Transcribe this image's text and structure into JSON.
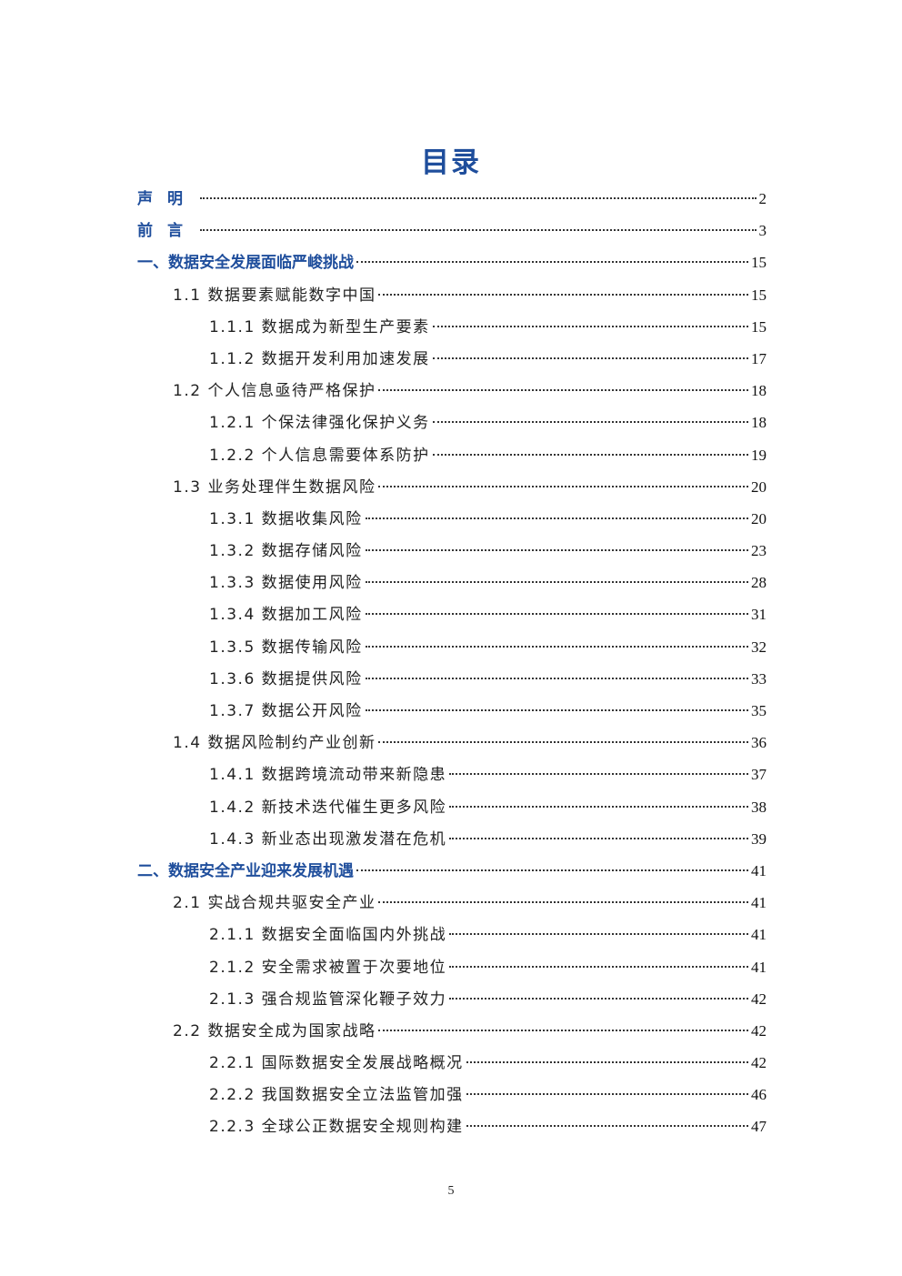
{
  "title": "目录",
  "entries": [
    {
      "level": 0,
      "label": "声明",
      "page": "2",
      "spaced": true
    },
    {
      "level": 0,
      "label": "前言",
      "page": "3",
      "spaced": true
    },
    {
      "level": 0,
      "label": "一、数据安全发展面临严峻挑战",
      "page": "15"
    },
    {
      "level": 1,
      "label": "1.1 数据要素赋能数字中国",
      "page": "15"
    },
    {
      "level": 2,
      "label": "1.1.1 数据成为新型生产要素",
      "page": "15"
    },
    {
      "level": 2,
      "label": "1.1.2 数据开发利用加速发展",
      "page": "17"
    },
    {
      "level": 1,
      "label": "1.2 个人信息亟待严格保护",
      "page": "18"
    },
    {
      "level": 2,
      "label": "1.2.1 个保法律强化保护义务",
      "page": "18"
    },
    {
      "level": 2,
      "label": "1.2.2 个人信息需要体系防护",
      "page": "19"
    },
    {
      "level": 1,
      "label": "1.3 业务处理伴生数据风险",
      "page": "20"
    },
    {
      "level": 2,
      "label": "1.3.1 数据收集风险",
      "page": "20"
    },
    {
      "level": 2,
      "label": "1.3.2 数据存储风险",
      "page": "23"
    },
    {
      "level": 2,
      "label": "1.3.3 数据使用风险",
      "page": "28"
    },
    {
      "level": 2,
      "label": "1.3.4 数据加工风险",
      "page": "31"
    },
    {
      "level": 2,
      "label": "1.3.5 数据传输风险",
      "page": "32"
    },
    {
      "level": 2,
      "label": "1.3.6 数据提供风险",
      "page": "33"
    },
    {
      "level": 2,
      "label": "1.3.7 数据公开风险",
      "page": "35"
    },
    {
      "level": 1,
      "label": "1.4 数据风险制约产业创新",
      "page": "36"
    },
    {
      "level": 2,
      "label": "1.4.1 数据跨境流动带来新隐患",
      "page": "37"
    },
    {
      "level": 2,
      "label": "1.4.2 新技术迭代催生更多风险",
      "page": "38"
    },
    {
      "level": 2,
      "label": "1.4.3 新业态出现激发潜在危机",
      "page": "39"
    },
    {
      "level": 0,
      "label": "二、数据安全产业迎来发展机遇",
      "page": "41"
    },
    {
      "level": 1,
      "label": "2.1 实战合规共驱安全产业",
      "page": "41"
    },
    {
      "level": 2,
      "label": "2.1.1 数据安全面临国内外挑战",
      "page": "41"
    },
    {
      "level": 2,
      "label": "2.1.2 安全需求被置于次要地位",
      "page": "41"
    },
    {
      "level": 2,
      "label": "2.1.3 强合规监管深化鞭子效力",
      "page": "42"
    },
    {
      "level": 1,
      "label": "2.2 数据安全成为国家战略",
      "page": "42"
    },
    {
      "level": 2,
      "label": "2.2.1 国际数据安全发展战略概况",
      "page": "42"
    },
    {
      "level": 2,
      "label": "2.2.2 我国数据安全立法监管加强",
      "page": "46"
    },
    {
      "level": 2,
      "label": "2.2.3 全球公正数据安全规则构建",
      "page": "47"
    }
  ],
  "footer": {
    "page_number": "5"
  },
  "colors": {
    "heading": "#1f4e9c",
    "text": "#222222"
  }
}
